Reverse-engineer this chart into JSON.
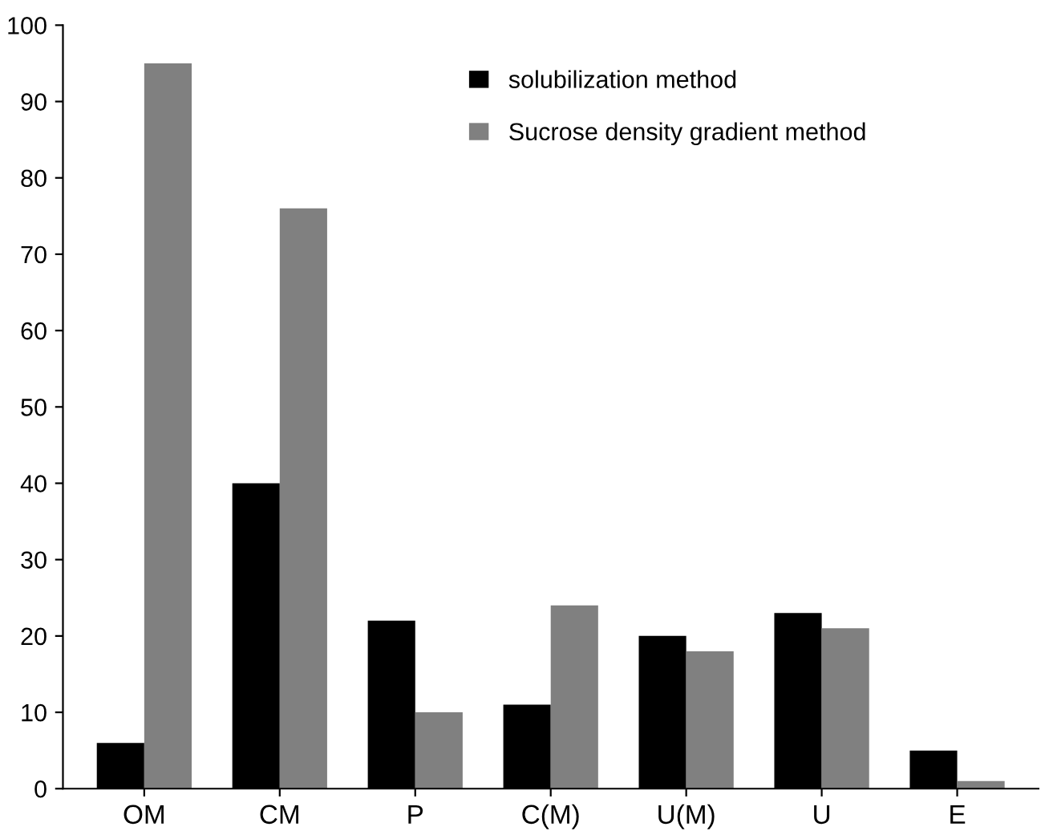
{
  "chart_data": {
    "type": "bar",
    "categories": [
      "OM",
      "CM",
      "P",
      "C(M)",
      "U(M)",
      "U",
      "E"
    ],
    "series": [
      {
        "name": "solubilization method",
        "color": "#000000",
        "values": [
          6,
          40,
          22,
          11,
          20,
          23,
          5
        ]
      },
      {
        "name": "Sucrose density gradient method",
        "color": "#808080",
        "values": [
          95,
          76,
          10,
          24,
          18,
          21,
          1
        ]
      }
    ],
    "ylim": [
      0,
      100
    ],
    "yticks": [
      0,
      10,
      20,
      30,
      40,
      50,
      60,
      70,
      80,
      90,
      100
    ],
    "grid": false,
    "legend": "top right"
  }
}
